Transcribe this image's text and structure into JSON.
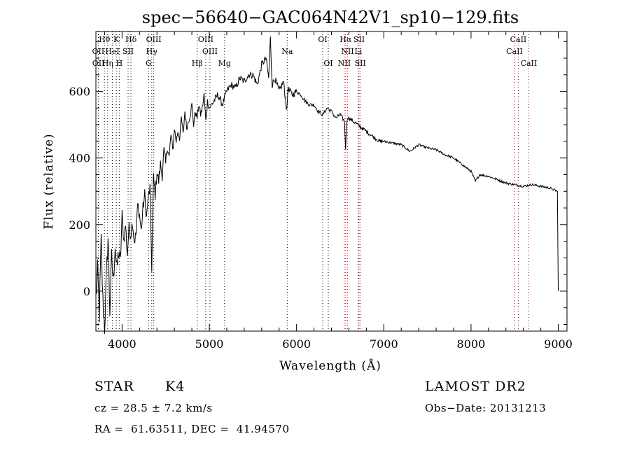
{
  "chart_data": {
    "type": "line",
    "title": "spec−56640−GAC064N42V1_sp10−129.fits",
    "xlabel": "Wavelength (Å)",
    "ylabel": "Flux (relative)",
    "xlim": [
      3700,
      9100
    ],
    "ylim": [
      -120,
      780
    ],
    "xticks": [
      4000,
      5000,
      6000,
      7000,
      8000,
      9000
    ],
    "yticks": [
      0,
      200,
      400,
      600
    ],
    "grid": false,
    "series": [
      {
        "x": [
          3700,
          3720,
          3740,
          3760,
          3780,
          3800,
          3820,
          3840,
          3860,
          3880,
          3900,
          3920,
          3940,
          3960,
          3980,
          4000,
          4020,
          4040,
          4060,
          4080,
          4100,
          4120,
          4140,
          4160,
          4180,
          4200,
          4220,
          4240,
          4260,
          4280,
          4300,
          4320,
          4340,
          4360,
          4380,
          4400,
          4420,
          4440,
          4460,
          4480,
          4500,
          4520,
          4540,
          4560,
          4580,
          4600,
          4620,
          4640,
          4660,
          4680,
          4700,
          4720,
          4740,
          4760,
          4780,
          4800,
          4820,
          4840,
          4860,
          4880,
          4900,
          4920,
          4940,
          4960,
          4980,
          5000,
          5050,
          5100,
          5150,
          5200,
          5250,
          5300,
          5350,
          5400,
          5450,
          5500,
          5550,
          5600,
          5650,
          5680,
          5700,
          5720,
          5750,
          5800,
          5850,
          5890,
          5900,
          5950,
          6000,
          6050,
          6100,
          6150,
          6200,
          6250,
          6300,
          6350,
          6400,
          6450,
          6500,
          6550,
          6562,
          6580,
          6600,
          6650,
          6700,
          6750,
          6800,
          6850,
          6900,
          6950,
          7000,
          7100,
          7200,
          7300,
          7400,
          7500,
          7600,
          7700,
          7800,
          7900,
          8000,
          8050,
          8100,
          8200,
          8300,
          8400,
          8500,
          8600,
          8700,
          8800,
          8900,
          8990,
          9000
        ],
        "y": [
          -20,
          60,
          -70,
          150,
          -30,
          -110,
          40,
          160,
          -60,
          100,
          30,
          140,
          60,
          120,
          80,
          230,
          150,
          200,
          110,
          190,
          170,
          210,
          150,
          170,
          260,
          230,
          180,
          250,
          290,
          220,
          280,
          310,
          70,
          340,
          290,
          360,
          330,
          380,
          350,
          420,
          380,
          440,
          400,
          470,
          420,
          490,
          450,
          480,
          460,
          520,
          470,
          540,
          490,
          510,
          530,
          560,
          500,
          540,
          520,
          560,
          530,
          550,
          590,
          510,
          570,
          550,
          570,
          590,
          560,
          600,
          620,
          610,
          640,
          630,
          650,
          650,
          620,
          680,
          700,
          640,
          760,
          620,
          640,
          600,
          630,
          540,
          610,
          590,
          600,
          590,
          570,
          560,
          560,
          540,
          530,
          550,
          540,
          520,
          530,
          510,
          430,
          520,
          520,
          510,
          500,
          490,
          480,
          470,
          460,
          450,
          450,
          445,
          440,
          420,
          440,
          430,
          425,
          410,
          400,
          380,
          360,
          330,
          350,
          345,
          335,
          325,
          320,
          315,
          320,
          315,
          310,
          300,
          0
        ]
      }
    ],
    "line_marks": [
      {
        "name": "Hθ",
        "x": 3798,
        "row": 0
      },
      {
        "name": "K",
        "x": 3934,
        "row": 0
      },
      {
        "name": "Hδ",
        "x": 4102,
        "row": 0
      },
      {
        "name": "OIII",
        "x": 4363,
        "row": 0
      },
      {
        "name": "OIII",
        "x": 4959,
        "row": 0
      },
      {
        "name": "OI",
        "x": 6300,
        "row": 0
      },
      {
        "name": "Hα",
        "x": 6563,
        "row": 0
      },
      {
        "name": "SII",
        "x": 6717,
        "row": 0
      },
      {
        "name": "CaII",
        "x": 8542,
        "row": 0
      },
      {
        "name": "OII",
        "x": 3727,
        "row": 1
      },
      {
        "name": "HeI",
        "x": 3889,
        "row": 1
      },
      {
        "name": "SII",
        "x": 4069,
        "row": 1
      },
      {
        "name": "Hγ",
        "x": 4340,
        "row": 1
      },
      {
        "name": "OIII",
        "x": 5007,
        "row": 1
      },
      {
        "name": "Na",
        "x": 5893,
        "row": 1
      },
      {
        "name": "NII",
        "x": 6584,
        "row": 1
      },
      {
        "name": "Li",
        "x": 6708,
        "row": 1
      },
      {
        "name": "CaII",
        "x": 8498,
        "row": 1
      },
      {
        "name": "OII",
        "x": 3729,
        "row": 2
      },
      {
        "name": "Hη",
        "x": 3835,
        "row": 2
      },
      {
        "name": "H",
        "x": 3968,
        "row": 2
      },
      {
        "name": "G",
        "x": 4305,
        "row": 2
      },
      {
        "name": "Hβ",
        "x": 4861,
        "row": 2
      },
      {
        "name": "Mg",
        "x": 5175,
        "row": 2
      },
      {
        "name": "OI",
        "x": 6364,
        "row": 2
      },
      {
        "name": "NII",
        "x": 6548,
        "row": 2
      },
      {
        "name": "SII",
        "x": 6731,
        "row": 2
      },
      {
        "name": "CaII",
        "x": 8662,
        "row": 2
      }
    ]
  },
  "info": {
    "class_label": "STAR",
    "subclass": "K4",
    "survey": "LAMOST DR2",
    "cz": "cz = 28.5 ± 7.2 km/s",
    "obs_date": "Obs−Date: 20131213",
    "coords": "RA =  61.63511, DEC =  41.94570"
  }
}
